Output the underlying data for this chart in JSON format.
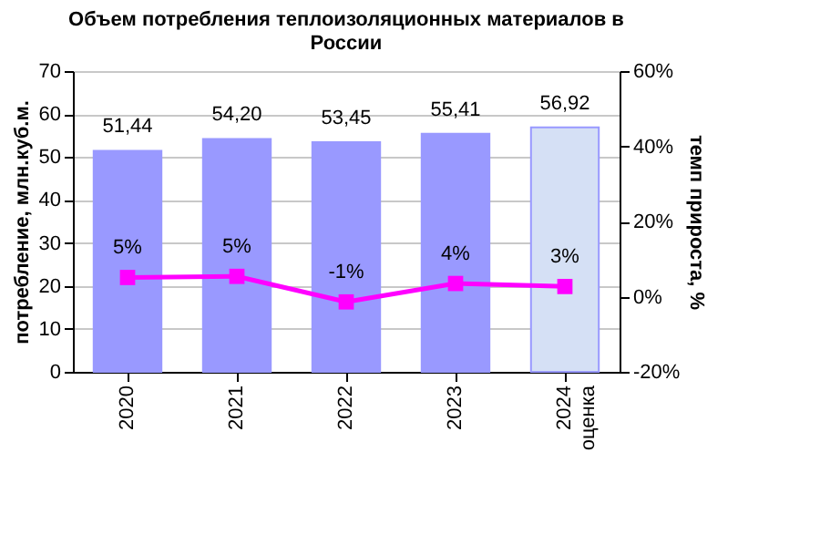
{
  "chart_data": {
    "type": "bar",
    "title": "Объем потребления теплоизоляционных материалов в России",
    "ylabel": "потребление, млн.куб.м.",
    "y2label": "темп прироста, %",
    "categories": [
      "2020",
      "2021",
      "2022",
      "2023",
      "2024 оценка"
    ],
    "series": [
      {
        "colors": [
          "#9999ff",
          "#9999ff",
          "#9999ff",
          "#9999ff",
          "#d5e0f5"
        ],
        "values": [
          51.44,
          54.2,
          53.45,
          55.41,
          56.92
        ],
        "value_labels": [
          "51,44",
          "54,20",
          "53,45",
          "55,41",
          "56,92"
        ]
      },
      {
        "type": "line",
        "axis": "y2",
        "color": "#ff00ff",
        "marker": "square",
        "values": [
          5.1,
          5.4,
          -1.4,
          3.5,
          2.7
        ],
        "value_labels": [
          "5%",
          "5%",
          "-1%",
          "4%",
          "3%"
        ]
      }
    ],
    "ylim": [
      0,
      70
    ],
    "yticks": [
      0,
      10,
      20,
      30,
      40,
      50,
      60,
      70
    ],
    "y2lim": [
      -20,
      60
    ],
    "y2ticks": [
      {
        "value": -20,
        "label": "-20%"
      },
      {
        "value": 0,
        "label": "0%"
      },
      {
        "value": 20,
        "label": "20%"
      },
      {
        "value": 40,
        "label": "40%"
      },
      {
        "value": 60,
        "label": "60%"
      }
    ],
    "grid": "y",
    "legend": false
  }
}
